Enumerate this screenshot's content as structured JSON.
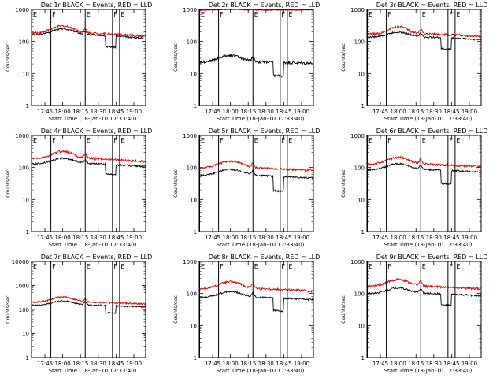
{
  "chart_data": [
    {
      "type": "line",
      "title": "Det 1r BLACK = Events, RED = LLD",
      "xlabel": "Start Time (18-Jan-10 17:33:40)",
      "ylabel": "Counts/sec",
      "yscale": "log",
      "ylim": [
        1,
        1000
      ],
      "xlim": [
        "17:33:40",
        "19:10"
      ],
      "xticks": [
        "17:45",
        "18:00",
        "18:15",
        "18:30",
        "18:45",
        "19:00"
      ],
      "yticks": [
        "1",
        "10",
        "100",
        "1000"
      ],
      "markers": [
        {
          "t": "17:34",
          "label": "E"
        },
        {
          "t": "17:50",
          "label": "F"
        },
        {
          "t": "18:19",
          "label": "E"
        },
        {
          "t": "18:42",
          "label": "F"
        },
        {
          "t": "18:48",
          "label": "E"
        }
      ],
      "series": [
        {
          "name": "Events",
          "color": "#000000",
          "base": 160,
          "bump": [
            18.0,
            1.55,
            12
          ],
          "spike": 1.25,
          "drop": [
            18.6,
            18.75,
            0.45
          ],
          "endf": 0.78,
          "noise": 0.06
        },
        {
          "name": "LLD",
          "color": "#e00000",
          "base": 180,
          "bump": [
            18.0,
            1.7,
            12
          ],
          "spike": 1.3,
          "drop": null,
          "endf": 0.8,
          "noise": 0.08
        }
      ]
    },
    {
      "type": "line",
      "title": "Det 2r BLACK = Events, RED = LLD",
      "xlabel": "Start Time (18-Jan-10 17:33:40)",
      "ylabel": "Counts/sec",
      "yscale": "log",
      "ylim": [
        1,
        1000
      ],
      "xlim": [
        "17:33:40",
        "19:10"
      ],
      "xticks": [
        "17:45",
        "18:00",
        "18:15",
        "18:30",
        "18:45",
        "19:00"
      ],
      "yticks": [
        "1",
        "10",
        "100",
        "1000"
      ],
      "markers": [
        {
          "t": "17:34",
          "label": "E"
        },
        {
          "t": "17:50",
          "label": "F"
        },
        {
          "t": "18:19",
          "label": "E"
        },
        {
          "t": "18:42",
          "label": "F"
        },
        {
          "t": "18:48",
          "label": "E"
        }
      ],
      "series": [
        {
          "name": "Events",
          "color": "#000000",
          "base": 23,
          "bump": [
            18.0,
            1.6,
            12
          ],
          "spike": 1.3,
          "drop": [
            18.6,
            18.75,
            0.38
          ],
          "endf": 0.9,
          "noise": 0.1
        },
        {
          "name": "LLD",
          "color": "#e00000",
          "base": 950,
          "bump": [
            18.0,
            1.05,
            12
          ],
          "spike": 1.05,
          "drop": null,
          "endf": 1.0,
          "noise": 0.03
        }
      ]
    },
    {
      "type": "line",
      "title": "Det 3r BLACK = Events, RED = LLD",
      "xlabel": "Start Time (18-Jan-10 17:33:40)",
      "ylabel": "Counts/sec",
      "yscale": "log",
      "ylim": [
        1,
        1000
      ],
      "xlim": [
        "17:33:40",
        "19:10"
      ],
      "xticks": [
        "17:45",
        "18:00",
        "18:15",
        "18:30",
        "18:45",
        "19:00"
      ],
      "yticks": [
        "1",
        "10",
        "100",
        "1000"
      ],
      "markers": [
        {
          "t": "17:34",
          "label": "E"
        },
        {
          "t": "17:50",
          "label": "F"
        },
        {
          "t": "18:19",
          "label": "E"
        },
        {
          "t": "18:42",
          "label": "F"
        },
        {
          "t": "18:48",
          "label": "E"
        }
      ],
      "series": [
        {
          "name": "Events",
          "color": "#000000",
          "base": 135,
          "bump": [
            18.0,
            1.45,
            12
          ],
          "spike": 1.3,
          "drop": [
            18.6,
            18.75,
            0.45
          ],
          "endf": 0.85,
          "noise": 0.06
        },
        {
          "name": "LLD",
          "color": "#e00000",
          "base": 170,
          "bump": [
            18.0,
            1.7,
            10
          ],
          "spike": 1.4,
          "drop": null,
          "endf": 0.85,
          "noise": 0.08
        }
      ]
    },
    {
      "type": "line",
      "title": "Det 4r BLACK = Events, RED = LLD",
      "xlabel": "Start Time (18-Jan-10 17:33:40)",
      "ylabel": "Counts/sec",
      "yscale": "log",
      "ylim": [
        1,
        1000
      ],
      "xlim": [
        "17:33:40",
        "19:10"
      ],
      "xticks": [
        "17:45",
        "18:00",
        "18:15",
        "18:30",
        "18:45",
        "19:00"
      ],
      "yticks": [
        "1",
        "10",
        "100",
        "1000"
      ],
      "markers": [
        {
          "t": "17:34",
          "label": "E"
        },
        {
          "t": "17:50",
          "label": "F"
        },
        {
          "t": "18:19",
          "label": "E"
        },
        {
          "t": "18:42",
          "label": "F"
        },
        {
          "t": "18:48",
          "label": "E"
        }
      ],
      "series": [
        {
          "name": "Events",
          "color": "#000000",
          "base": 130,
          "bump": [
            18.0,
            1.5,
            12
          ],
          "spike": 1.3,
          "drop": [
            18.6,
            18.75,
            0.5
          ],
          "endf": 0.82,
          "noise": 0.06
        },
        {
          "name": "LLD",
          "color": "#e00000",
          "base": 190,
          "bump": [
            18.0,
            1.7,
            11
          ],
          "spike": 1.35,
          "drop": null,
          "endf": 0.8,
          "noise": 0.08
        }
      ]
    },
    {
      "type": "line",
      "title": "Det 5r BLACK = Events, RED = LLD",
      "xlabel": "Start Time (18-Jan-10 17:33:40)",
      "ylabel": "Counts/sec",
      "yscale": "log",
      "ylim": [
        1,
        1000
      ],
      "xlim": [
        "17:33:40",
        "19:10"
      ],
      "xticks": [
        "17:45",
        "18:00",
        "18:15",
        "18:30",
        "18:45",
        "19:00"
      ],
      "yticks": [
        "1",
        "10",
        "100",
        "1000"
      ],
      "markers": [
        {
          "t": "17:34",
          "label": "E"
        },
        {
          "t": "17:50",
          "label": "F"
        },
        {
          "t": "18:19",
          "label": "E"
        },
        {
          "t": "18:42",
          "label": "F"
        },
        {
          "t": "18:48",
          "label": "E"
        }
      ],
      "series": [
        {
          "name": "Events",
          "color": "#000000",
          "base": 55,
          "bump": [
            18.0,
            1.6,
            13
          ],
          "spike": 1.35,
          "drop": [
            18.6,
            18.75,
            0.35
          ],
          "endf": 0.85,
          "noise": 0.06
        },
        {
          "name": "LLD",
          "color": "#e00000",
          "base": 95,
          "bump": [
            18.0,
            1.65,
            13
          ],
          "spike": 1.35,
          "drop": null,
          "endf": 0.85,
          "noise": 0.07
        }
      ]
    },
    {
      "type": "line",
      "title": "Det 6r BLACK = Events, RED = LLD",
      "xlabel": "Start Time (18-Jan-10 17:33:40)",
      "ylabel": "Counts/sec",
      "yscale": "log",
      "ylim": [
        1,
        1000
      ],
      "xlim": [
        "17:33:40",
        "19:10"
      ],
      "xticks": [
        "17:45",
        "18:00",
        "18:15",
        "18:30",
        "18:45",
        "19:00"
      ],
      "yticks": [
        "1",
        "10",
        "100",
        "1000"
      ],
      "markers": [
        {
          "t": "17:34",
          "label": "E"
        },
        {
          "t": "17:50",
          "label": "F"
        },
        {
          "t": "18:19",
          "label": "E"
        },
        {
          "t": "18:42",
          "label": "F"
        },
        {
          "t": "18:48",
          "label": "E"
        }
      ],
      "series": [
        {
          "name": "Events",
          "color": "#000000",
          "base": 85,
          "bump": [
            18.0,
            1.55,
            12
          ],
          "spike": 1.35,
          "drop": [
            18.6,
            18.75,
            0.38
          ],
          "endf": 0.85,
          "noise": 0.06
        },
        {
          "name": "LLD",
          "color": "#e00000",
          "base": 125,
          "bump": [
            18.0,
            1.65,
            12
          ],
          "spike": 1.4,
          "drop": null,
          "endf": 0.85,
          "noise": 0.08
        }
      ]
    },
    {
      "type": "line",
      "title": "Det 7r BLACK = Events, RED = LLD",
      "xlabel": "Start Time (18-Jan-10 17:33:40)",
      "ylabel": "Counts/sec",
      "yscale": "log",
      "ylim": [
        1,
        10000
      ],
      "xlim": [
        "17:33:40",
        "19:10"
      ],
      "xticks": [
        "17:45",
        "18:00",
        "18:15",
        "18:30",
        "18:45",
        "19:00"
      ],
      "yticks": [
        "1",
        "10",
        "100",
        "1000",
        "10000"
      ],
      "markers": [
        {
          "t": "17:34",
          "label": "E"
        },
        {
          "t": "17:50",
          "label": "F"
        },
        {
          "t": "18:19",
          "label": "E"
        },
        {
          "t": "18:42",
          "label": "F"
        },
        {
          "t": "18:48",
          "label": "E"
        }
      ],
      "series": [
        {
          "name": "Events",
          "color": "#000000",
          "base": 150,
          "bump": [
            18.0,
            1.5,
            12
          ],
          "spike": 1.35,
          "drop": [
            18.6,
            18.75,
            0.5
          ],
          "endf": 0.85,
          "noise": 0.06
        },
        {
          "name": "LLD",
          "color": "#e00000",
          "base": 200,
          "bump": [
            18.0,
            1.65,
            12
          ],
          "spike": 1.35,
          "drop": null,
          "endf": 0.85,
          "noise": 0.08
        }
      ]
    },
    {
      "type": "line",
      "title": "Det 8r BLACK = Events, RED = LLD",
      "xlabel": "Start Time (18-Jan-10 17:33:40)",
      "ylabel": "Counts/sec",
      "yscale": "log",
      "ylim": [
        1,
        1000
      ],
      "xlim": [
        "17:33:40",
        "19:10"
      ],
      "xticks": [
        "17:45",
        "18:00",
        "18:15",
        "18:30",
        "18:45",
        "19:00"
      ],
      "yticks": [
        "1",
        "10",
        "100",
        "1000"
      ],
      "markers": [
        {
          "t": "17:34",
          "label": "E"
        },
        {
          "t": "17:50",
          "label": "F"
        },
        {
          "t": "18:19",
          "label": "E"
        },
        {
          "t": "18:42",
          "label": "F"
        },
        {
          "t": "18:48",
          "label": "E"
        }
      ],
      "series": [
        {
          "name": "Events",
          "color": "#000000",
          "base": 75,
          "bump": [
            18.0,
            1.55,
            12
          ],
          "spike": 1.35,
          "drop": [
            18.6,
            18.75,
            0.4
          ],
          "endf": 0.85,
          "noise": 0.06
        },
        {
          "name": "LLD",
          "color": "#e00000",
          "base": 140,
          "bump": [
            18.0,
            1.65,
            12
          ],
          "spike": 1.4,
          "drop": null,
          "endf": 0.85,
          "noise": 0.08
        }
      ]
    },
    {
      "type": "line",
      "title": "Det 9r BLACK = Events, RED = LLD",
      "xlabel": "Start Time (18-Jan-10 17:33:40)",
      "ylabel": "Counts/sec",
      "yscale": "log",
      "ylim": [
        1,
        1000
      ],
      "xlim": [
        "17:33:40",
        "19:10"
      ],
      "xticks": [
        "17:45",
        "18:00",
        "18:15",
        "18:30",
        "18:45",
        "19:00"
      ],
      "yticks": [
        "1",
        "10",
        "100",
        "1000"
      ],
      "markers": [
        {
          "t": "17:34",
          "label": "E"
        },
        {
          "t": "17:50",
          "label": "F"
        },
        {
          "t": "18:19",
          "label": "E"
        },
        {
          "t": "18:42",
          "label": "F"
        },
        {
          "t": "18:48",
          "label": "E"
        }
      ],
      "series": [
        {
          "name": "Events",
          "color": "#000000",
          "base": 100,
          "bump": [
            18.0,
            1.5,
            12
          ],
          "spike": 1.35,
          "drop": [
            18.6,
            18.75,
            0.45
          ],
          "endf": 0.85,
          "noise": 0.06
        },
        {
          "name": "LLD",
          "color": "#e00000",
          "base": 165,
          "bump": [
            18.0,
            1.65,
            12
          ],
          "spike": 1.4,
          "drop": null,
          "endf": 0.85,
          "noise": 0.08
        }
      ]
    }
  ]
}
